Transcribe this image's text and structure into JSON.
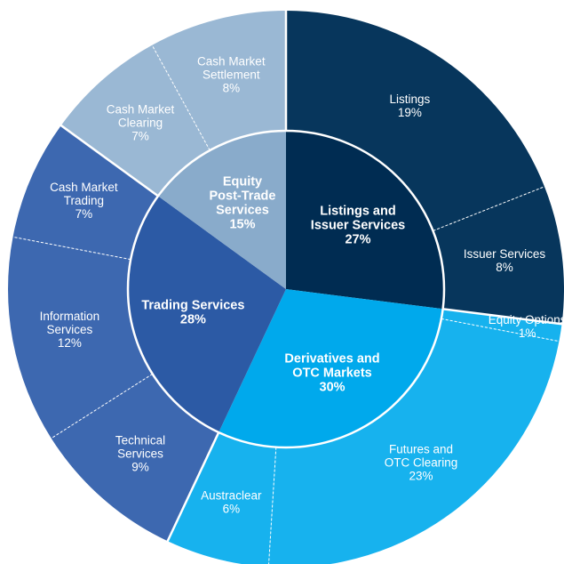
{
  "chart_data": {
    "type": "pie",
    "title": "",
    "inner": [
      {
        "label": [
          "Listings and",
          "Issuer Services"
        ],
        "value": 27,
        "percent": "27%",
        "color": "#002c52"
      },
      {
        "label": [
          "Derivatives and",
          "OTC Markets"
        ],
        "value": 30,
        "percent": "30%",
        "color": "#00a9ec"
      },
      {
        "label": [
          "Trading Services"
        ],
        "value": 28,
        "percent": "28%",
        "color": "#2c5aa5"
      },
      {
        "label": [
          "Equity",
          "Post-Trade",
          "Services"
        ],
        "value": 15,
        "percent": "15%",
        "color": "#89abcb"
      }
    ],
    "outer": [
      {
        "label": [
          "Listings"
        ],
        "value": 19,
        "percent": "19%",
        "group": 0,
        "color": "#07365c"
      },
      {
        "label": [
          "Issuer Services"
        ],
        "value": 8,
        "percent": "8%",
        "group": 0,
        "color": "#07365c"
      },
      {
        "label": [
          "Equity Options"
        ],
        "value": 1,
        "percent": "1%",
        "group": 1,
        "color": "#17b2ee"
      },
      {
        "label": [
          "Futures and",
          "OTC Clearing"
        ],
        "value": 23,
        "percent": "23%",
        "group": 1,
        "color": "#17b2ee"
      },
      {
        "label": [
          "Austraclear"
        ],
        "value": 6,
        "percent": "6%",
        "group": 1,
        "color": "#17b2ee"
      },
      {
        "label": [
          "Technical",
          "Services"
        ],
        "value": 9,
        "percent": "9%",
        "group": 2,
        "color": "#3d68b0"
      },
      {
        "label": [
          "Information",
          "Services"
        ],
        "value": 12,
        "percent": "12%",
        "group": 2,
        "color": "#3d68b0"
      },
      {
        "label": [
          "Cash Market",
          "Trading"
        ],
        "value": 7,
        "percent": "7%",
        "group": 2,
        "color": "#3d68b0"
      },
      {
        "label": [
          "Cash Market",
          "Clearing"
        ],
        "value": 7,
        "percent": "7%",
        "group": 3,
        "color": "#9ab8d4"
      },
      {
        "label": [
          "Cash Market",
          "Settlement"
        ],
        "value": 8,
        "percent": "8%",
        "group": 3,
        "color": "#9ab8d4"
      }
    ]
  }
}
